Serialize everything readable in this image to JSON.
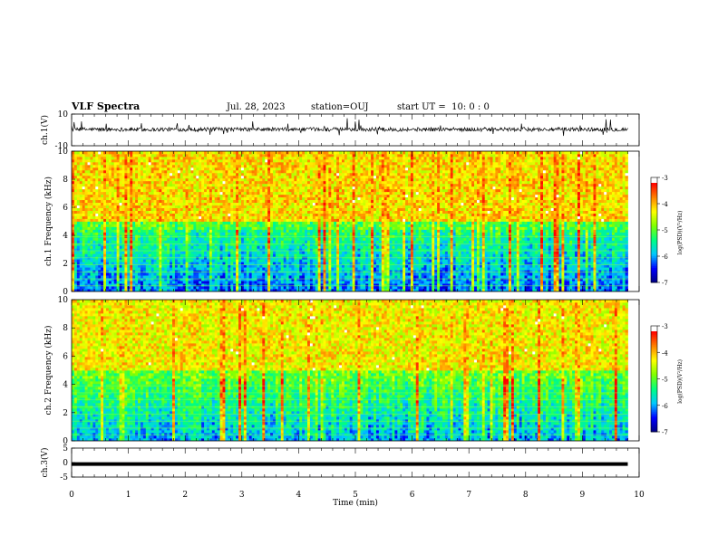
{
  "header": {
    "title": "VLF Spectra",
    "date": "Jul. 28, 2023",
    "station": "station=OUJ",
    "start": "start UT =  10: 0 : 0"
  },
  "chart_data": [
    {
      "type": "line",
      "panel": "ch1-waveform",
      "ylabel": "ch.1(V)",
      "ylim": [
        -10,
        10
      ],
      "yticks": [
        {
          "v": 10,
          "label": "10"
        },
        {
          "v": -10,
          "label": "-10"
        }
      ],
      "xlim": [
        0,
        10
      ],
      "series": [
        {
          "x_range_min": [
            0,
            9.8
          ],
          "baseline_v": 0.3,
          "noise_v": 2.5,
          "spike_min_v": -4,
          "spike_max_v": 8
        }
      ]
    },
    {
      "type": "heatmap",
      "panel": "ch1-spectrogram",
      "ylabel": "ch.1 Frequency (kHz)",
      "ylim": [
        0,
        10
      ],
      "yticks": [
        "0",
        "2",
        "4",
        "6",
        "8",
        "10"
      ],
      "xlim": [
        0,
        9.8
      ],
      "colorbar": {
        "label": "log(PSD)(V²/Hz)",
        "range": [
          -7,
          -3
        ],
        "ticks": [
          "-3",
          "-4",
          "-5",
          "-6",
          "-7"
        ]
      },
      "description_values": {
        "low_freq_band_kHz": [
          0,
          4.5
        ],
        "low_level": -6.5,
        "high_freq_band_kHz": [
          5,
          10
        ],
        "high_level": -3.8
      }
    },
    {
      "type": "heatmap",
      "panel": "ch2-spectrogram",
      "ylabel": "ch.2 Frequency (kHz)",
      "ylim": [
        0,
        10
      ],
      "yticks": [
        "0",
        "2",
        "4",
        "6",
        "8",
        "10"
      ],
      "xlim": [
        0,
        9.8
      ],
      "colorbar": {
        "label": "log(PSD)(V²/Hz)",
        "range": [
          -7,
          -3
        ],
        "ticks": [
          "-3",
          "-4",
          "-5",
          "-6",
          "-7"
        ]
      },
      "description_values": {
        "low_freq_band_kHz": [
          0,
          4.5
        ],
        "low_level": -6.2,
        "high_freq_band_kHz": [
          5,
          10
        ],
        "high_level": -3.9
      }
    },
    {
      "type": "line",
      "panel": "ch3-waveform",
      "ylabel": "ch.3(V)",
      "ylim": [
        -5,
        5
      ],
      "yticks": [
        {
          "v": 5,
          "label": "5"
        },
        {
          "v": 0,
          "label": "0"
        },
        {
          "v": -5,
          "label": "-5"
        }
      ],
      "xlim": [
        0,
        10
      ],
      "series": [
        {
          "x": [
            0,
            9.8
          ],
          "y": [
            -0.5,
            -0.5
          ]
        }
      ]
    }
  ],
  "xaxis": {
    "label": "Time (min)",
    "range": [
      0,
      10
    ],
    "ticks": [
      "0",
      "1",
      "2",
      "3",
      "4",
      "5",
      "6",
      "7",
      "8",
      "9",
      "10"
    ]
  },
  "colors": {
    "colormap": [
      "#000080",
      "#0000ff",
      "#00c8ff",
      "#00ff80",
      "#80ff00",
      "#ffff00",
      "#ff8000",
      "#ff0000",
      "#ffffff"
    ]
  }
}
